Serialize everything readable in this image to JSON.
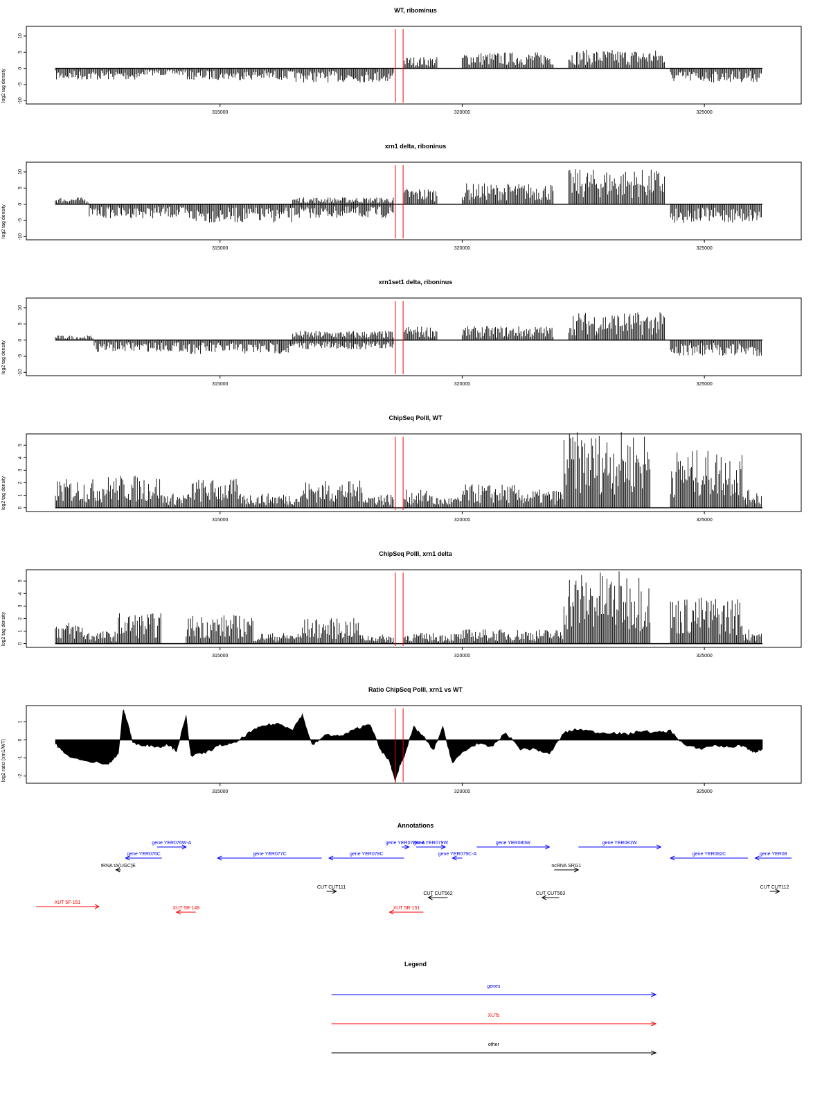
{
  "colors": {
    "gene": "#0000ff",
    "xut": "#ff0000",
    "other": "#000000",
    "marker": "#ff0000",
    "signal": "#000000",
    "frame": "#000000"
  },
  "chart_data": [
    {
      "type": "bar",
      "title": "WT, ribominus",
      "ylabel": "log2 tag density",
      "ylim": [
        -11,
        13
      ],
      "yticks": [
        10,
        5,
        0,
        -5,
        -10
      ],
      "xlim": [
        311000,
        327000
      ],
      "xticks": [
        315000,
        320000,
        325000
      ],
      "xtick_labels": [
        "315000",
        "320000",
        "325000"
      ],
      "markers": [
        318620,
        318780
      ],
      "segments": [
        {
          "x0": 311600,
          "x1": 313400,
          "level": -2.5
        },
        {
          "x0": 313400,
          "x1": 314300,
          "level": -1.5
        },
        {
          "x0": 314300,
          "x1": 316500,
          "level": -2.5
        },
        {
          "x0": 316500,
          "x1": 318600,
          "level": -3.0
        },
        {
          "x0": 318800,
          "x1": 319500,
          "level": 2.5
        },
        {
          "x0": 320000,
          "x1": 321900,
          "level": 3.5
        },
        {
          "x0": 322200,
          "x1": 324200,
          "level": 4.0
        },
        {
          "x0": 324300,
          "x1": 326200,
          "level": -3.0
        }
      ]
    },
    {
      "type": "bar",
      "title": "xrn1 delta, riboninus",
      "ylabel": "log2 tag density",
      "ylim": [
        -11,
        13
      ],
      "yticks": [
        10,
        5,
        0,
        -5,
        -10
      ],
      "xlim": [
        311000,
        327000
      ],
      "xticks": [
        315000,
        320000,
        325000
      ],
      "xtick_labels": [
        "315000",
        "320000",
        "325000"
      ],
      "markers": [
        318620,
        318780
      ],
      "segments": [
        {
          "x0": 311600,
          "x1": 312300,
          "level": 1.5
        },
        {
          "x0": 312300,
          "x1": 314300,
          "level": -3.0
        },
        {
          "x0": 314300,
          "x1": 316500,
          "level": -4.0
        },
        {
          "x0": 316500,
          "x1": 318600,
          "level": -3.0
        },
        {
          "x0": 316500,
          "x1": 318600,
          "level": 1.5
        },
        {
          "x0": 318800,
          "x1": 319500,
          "level": 3.5
        },
        {
          "x0": 320000,
          "x1": 321900,
          "level": 4.5
        },
        {
          "x0": 322200,
          "x1": 324200,
          "level": 7.5
        },
        {
          "x0": 324300,
          "x1": 326200,
          "level": -4.0
        }
      ]
    },
    {
      "type": "bar",
      "title": "xrn1set1 delta, riboninus",
      "ylabel": "log2 tag density",
      "ylim": [
        -11,
        13
      ],
      "yticks": [
        10,
        5,
        0,
        -5,
        -10
      ],
      "xlim": [
        311000,
        327000
      ],
      "xticks": [
        315000,
        320000,
        325000
      ],
      "xtick_labels": [
        "315000",
        "320000",
        "325000"
      ],
      "markers": [
        318620,
        318780
      ],
      "segments": [
        {
          "x0": 311600,
          "x1": 312400,
          "level": 1.0
        },
        {
          "x0": 312400,
          "x1": 314300,
          "level": -2.5
        },
        {
          "x0": 314300,
          "x1": 316500,
          "level": -3.0
        },
        {
          "x0": 316500,
          "x1": 318600,
          "level": -2.0
        },
        {
          "x0": 316500,
          "x1": 318600,
          "level": 2.0
        },
        {
          "x0": 318800,
          "x1": 319500,
          "level": 3.0
        },
        {
          "x0": 320000,
          "x1": 321900,
          "level": 3.0
        },
        {
          "x0": 322200,
          "x1": 324200,
          "level": 6.0
        },
        {
          "x0": 324300,
          "x1": 326200,
          "level": -3.5
        }
      ]
    },
    {
      "type": "bar",
      "title": "ChipSeq PolII, WT",
      "ylabel": "log2 tag density",
      "ylim": [
        -0.3,
        5.9
      ],
      "yticks": [
        0,
        1,
        2,
        3,
        4,
        5
      ],
      "xlim": [
        311000,
        327000
      ],
      "xticks": [
        315000,
        320000,
        325000
      ],
      "xtick_labels": [
        "315000",
        "320000",
        "325000"
      ],
      "markers": [
        318620,
        318780
      ],
      "segments": [
        {
          "x0": 311600,
          "x1": 312600,
          "level": 1.6
        },
        {
          "x0": 312600,
          "x1": 313800,
          "level": 1.8
        },
        {
          "x0": 313800,
          "x1": 314400,
          "level": 0.8
        },
        {
          "x0": 314400,
          "x1": 315400,
          "level": 1.6
        },
        {
          "x0": 315400,
          "x1": 316700,
          "level": 0.8
        },
        {
          "x0": 316700,
          "x1": 318000,
          "level": 1.5
        },
        {
          "x0": 318000,
          "x1": 318600,
          "level": 0.8
        },
        {
          "x0": 318800,
          "x1": 319400,
          "level": 1.0
        },
        {
          "x0": 319400,
          "x1": 320000,
          "level": 0.6
        },
        {
          "x0": 320000,
          "x1": 321100,
          "level": 1.3
        },
        {
          "x0": 321100,
          "x1": 322100,
          "level": 1.0
        },
        {
          "x0": 322100,
          "x1": 323900,
          "level": 4.2
        },
        {
          "x0": 324300,
          "x1": 325800,
          "level": 3.2
        },
        {
          "x0": 325800,
          "x1": 326200,
          "level": 1.0
        }
      ]
    },
    {
      "type": "bar",
      "title": "ChipSeq PolII, xrn1 delta",
      "ylabel": "log2 tag density",
      "ylim": [
        -0.3,
        5.9
      ],
      "yticks": [
        0,
        1,
        2,
        3,
        4,
        5
      ],
      "xlim": [
        311000,
        327000
      ],
      "xticks": [
        315000,
        320000,
        325000
      ],
      "xtick_labels": [
        "315000",
        "320000",
        "325000"
      ],
      "markers": [
        318620,
        318780
      ],
      "segments": [
        {
          "x0": 311600,
          "x1": 312200,
          "level": 1.2
        },
        {
          "x0": 312200,
          "x1": 312900,
          "level": 0.7
        },
        {
          "x0": 312900,
          "x1": 313800,
          "level": 1.7
        },
        {
          "x0": 314300,
          "x1": 315700,
          "level": 1.6
        },
        {
          "x0": 315700,
          "x1": 316700,
          "level": 0.6
        },
        {
          "x0": 316700,
          "x1": 317900,
          "level": 1.4
        },
        {
          "x0": 317900,
          "x1": 318600,
          "level": 0.5
        },
        {
          "x0": 318800,
          "x1": 320000,
          "level": 0.6
        },
        {
          "x0": 320000,
          "x1": 322100,
          "level": 0.8
        },
        {
          "x0": 322100,
          "x1": 323900,
          "level": 4.0
        },
        {
          "x0": 324300,
          "x1": 325800,
          "level": 2.6
        },
        {
          "x0": 325800,
          "x1": 326200,
          "level": 0.8
        }
      ]
    },
    {
      "type": "area",
      "title": "Ratio ChipSeq PolII, xrn1 vs WT",
      "ylabel": "log2 ratio (xrn1/WT)",
      "ylim": [
        -2.4,
        1.9
      ],
      "yticks": [
        1,
        0,
        -1,
        -2
      ],
      "xlim": [
        311000,
        327000
      ],
      "xticks": [
        315000,
        320000,
        325000
      ],
      "xtick_labels": [
        "315000",
        "320000",
        "325000"
      ],
      "markers": [
        318620,
        318780
      ],
      "profile": [
        [
          311600,
          -0.2
        ],
        [
          311800,
          -0.8
        ],
        [
          312200,
          -1.2
        ],
        [
          312700,
          -1.3
        ],
        [
          312900,
          -0.8
        ],
        [
          313000,
          1.7
        ],
        [
          313100,
          0.9
        ],
        [
          313200,
          -0.2
        ],
        [
          313500,
          -0.3
        ],
        [
          313800,
          -0.4
        ],
        [
          313900,
          -0.2
        ],
        [
          314100,
          -0.6
        ],
        [
          314300,
          1.3
        ],
        [
          314400,
          -0.9
        ],
        [
          314700,
          -0.7
        ],
        [
          315000,
          -0.3
        ],
        [
          315300,
          -0.2
        ],
        [
          315600,
          0.4
        ],
        [
          315900,
          0.8
        ],
        [
          316200,
          0.9
        ],
        [
          316500,
          0.6
        ],
        [
          316700,
          1.4
        ],
        [
          316900,
          -0.3
        ],
        [
          317200,
          0.3
        ],
        [
          317500,
          0.2
        ],
        [
          317800,
          0.6
        ],
        [
          318100,
          0.9
        ],
        [
          318300,
          -0.5
        ],
        [
          318500,
          -1.2
        ],
        [
          318620,
          -2.3
        ],
        [
          318700,
          -1.5
        ],
        [
          318800,
          -0.9
        ],
        [
          319000,
          0.7
        ],
        [
          319200,
          0.2
        ],
        [
          319400,
          -0.6
        ],
        [
          319600,
          0.7
        ],
        [
          319800,
          -1.3
        ],
        [
          320000,
          -0.7
        ],
        [
          320300,
          -0.2
        ],
        [
          320600,
          -0.4
        ],
        [
          320900,
          0.4
        ],
        [
          321200,
          -0.5
        ],
        [
          321500,
          -0.5
        ],
        [
          321800,
          -0.8
        ],
        [
          322100,
          0.4
        ],
        [
          322400,
          0.6
        ],
        [
          322800,
          0.4
        ],
        [
          323100,
          0.4
        ],
        [
          323400,
          0.3
        ],
        [
          323700,
          0.5
        ],
        [
          324000,
          0.4
        ],
        [
          324300,
          0.5
        ],
        [
          324600,
          -0.3
        ],
        [
          324900,
          -0.5
        ],
        [
          325200,
          -0.3
        ],
        [
          325500,
          -0.4
        ],
        [
          325800,
          -0.3
        ],
        [
          326000,
          -0.7
        ],
        [
          326200,
          -0.5
        ]
      ]
    }
  ],
  "annotations": {
    "title": "Annotations",
    "features": [
      {
        "label": "gene YER076W-A",
        "type": "gene",
        "start": 313700,
        "end": 314300,
        "strand": "+",
        "row": 0
      },
      {
        "label": "gene YER076C",
        "type": "gene",
        "start": 313050,
        "end": 313800,
        "strand": "-",
        "row": 1
      },
      {
        "label": "tRNA tA(UGC)E",
        "type": "other",
        "start": 312850,
        "end": 312950,
        "strand": "-",
        "row": 2
      },
      {
        "label": "gene YER077C",
        "type": "gene",
        "start": 314950,
        "end": 317100,
        "strand": "-",
        "row": 1
      },
      {
        "label": "gene YER078C",
        "type": "gene",
        "start": 317250,
        "end": 318800,
        "strand": "-",
        "row": 1
      },
      {
        "label": "gene YER078W-A",
        "type": "gene",
        "start": 318750,
        "end": 318900,
        "strand": "+",
        "row": 0
      },
      {
        "label": "gene YER079W",
        "type": "gene",
        "start": 319050,
        "end": 319650,
        "strand": "+",
        "row": 0
      },
      {
        "label": "gene YER079C-A",
        "type": "gene",
        "start": 319800,
        "end": 320000,
        "strand": "-",
        "row": 1
      },
      {
        "label": "gene YER080W",
        "type": "gene",
        "start": 320300,
        "end": 321800,
        "strand": "+",
        "row": 0
      },
      {
        "label": "ncRNA SRG1",
        "type": "other",
        "start": 321900,
        "end": 322400,
        "strand": "+",
        "row": 2
      },
      {
        "label": "gene YER081W",
        "type": "gene",
        "start": 322400,
        "end": 324100,
        "strand": "+",
        "row": 0
      },
      {
        "label": "gene YER082C",
        "type": "gene",
        "start": 324300,
        "end": 325900,
        "strand": "-",
        "row": 1
      },
      {
        "label": "gene YER08",
        "type": "gene",
        "start": 326050,
        "end": 326800,
        "strand": "-",
        "row": 1
      },
      {
        "label": "CUT CUT111",
        "type": "other",
        "start": 317200,
        "end": 317400,
        "strand": "+",
        "row": 3
      },
      {
        "label": "CUT CUT562",
        "type": "other",
        "start": 319300,
        "end": 319700,
        "strand": "-",
        "row": 4
      },
      {
        "label": "CUT CUT563",
        "type": "other",
        "start": 321650,
        "end": 322000,
        "strand": "-",
        "row": 4
      },
      {
        "label": "CUT CUT112",
        "type": "other",
        "start": 326350,
        "end": 326550,
        "strand": "+",
        "row": 3
      },
      {
        "label": "XUT 5F-151",
        "type": "xut",
        "start": 311200,
        "end": 312500,
        "strand": "+",
        "row": 5
      },
      {
        "label": "XUT 5R-148",
        "type": "xut",
        "start": 314100,
        "end": 314500,
        "strand": "-",
        "row": 6
      },
      {
        "label": "XUT 5R-151",
        "type": "xut",
        "start": 318500,
        "end": 319200,
        "strand": "-",
        "row": 6
      }
    ]
  },
  "legend": {
    "title": "Legend",
    "entries": [
      {
        "label": "genes",
        "type": "gene"
      },
      {
        "label": "XUTs",
        "type": "xut"
      },
      {
        "label": "other",
        "type": "other"
      }
    ]
  }
}
